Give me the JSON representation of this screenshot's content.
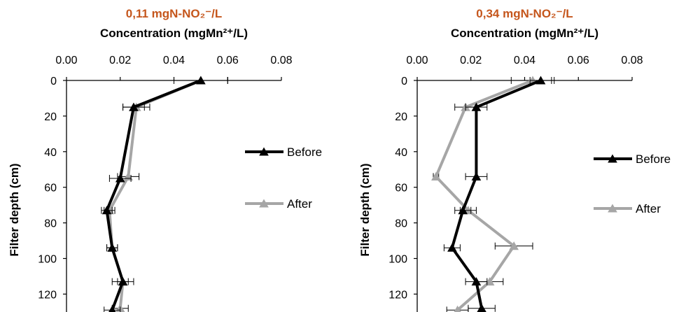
{
  "chart_data": [
    {
      "type": "line",
      "title": "0,11 mgN-NO₂⁻/L",
      "xlabel": "Concentration (mgMn²⁺/L)",
      "ylabel": "Filter depth (cm)",
      "xlim": [
        0,
        0.08
      ],
      "ylim": [
        0,
        130
      ],
      "y_inverted": true,
      "x_axis_position": "top",
      "x_ticks": [
        "0.00",
        "0.02",
        "0.04",
        "0.06",
        "0.08"
      ],
      "y_ticks": [
        "0",
        "20",
        "40",
        "60",
        "80",
        "100",
        "120"
      ],
      "grid": false,
      "legend": "right",
      "series": [
        {
          "name": "Before",
          "color": "#000000",
          "marker": "triangle",
          "points": [
            {
              "x": 0.05,
              "y": 0,
              "err": 0.01
            },
            {
              "x": 0.025,
              "y": 15,
              "err": 0.004
            },
            {
              "x": 0.02,
              "y": 55,
              "err": 0.004
            },
            {
              "x": 0.015,
              "y": 73,
              "err": 0.002
            },
            {
              "x": 0.017,
              "y": 94,
              "err": 0.002
            },
            {
              "x": 0.021,
              "y": 113,
              "err": 0.002
            },
            {
              "x": 0.017,
              "y": 129,
              "err": 0.003
            }
          ]
        },
        {
          "name": "After",
          "color": "#a6a6a6",
          "marker": "triangle",
          "points": [
            {
              "x": 0.05,
              "y": 0,
              "err": 0.01
            },
            {
              "x": 0.026,
              "y": 15,
              "err": 0.005
            },
            {
              "x": 0.023,
              "y": 54,
              "err": 0.004
            },
            {
              "x": 0.016,
              "y": 73,
              "err": 0.002
            },
            {
              "x": 0.017,
              "y": 94,
              "err": 0.002
            },
            {
              "x": 0.021,
              "y": 113,
              "err": 0.004
            },
            {
              "x": 0.02,
              "y": 128,
              "err": 0.003
            }
          ]
        }
      ]
    },
    {
      "type": "line",
      "title": "0,34 mgN-NO₂⁻/L",
      "xlabel": "Concentration (mgMn²⁺/L)",
      "ylabel": "Filter depth (cm)",
      "xlim": [
        0,
        0.08
      ],
      "ylim": [
        0,
        130
      ],
      "y_inverted": true,
      "x_axis_position": "top",
      "x_ticks": [
        "0.00",
        "0.02",
        "0.04",
        "0.06",
        "0.08"
      ],
      "y_ticks": [
        "0",
        "20",
        "40",
        "60",
        "80",
        "100",
        "120"
      ],
      "grid": false,
      "legend": "right",
      "series": [
        {
          "name": "Before",
          "color": "#000000",
          "marker": "triangle",
          "points": [
            {
              "x": 0.046,
              "y": 0,
              "err": 0.004
            },
            {
              "x": 0.022,
              "y": 15,
              "err": 0.004
            },
            {
              "x": 0.022,
              "y": 54,
              "err": 0.004
            },
            {
              "x": 0.017,
              "y": 73,
              "err": 0.003
            },
            {
              "x": 0.013,
              "y": 94,
              "err": 0.003
            },
            {
              "x": 0.022,
              "y": 113,
              "err": 0.004
            },
            {
              "x": 0.024,
              "y": 128,
              "err": 0.005
            }
          ]
        },
        {
          "name": "After",
          "color": "#a6a6a6",
          "marker": "triangle",
          "points": [
            {
              "x": 0.043,
              "y": 0,
              "err": 0.008
            },
            {
              "x": 0.018,
              "y": 15,
              "err": 0.004
            },
            {
              "x": 0.007,
              "y": 54,
              "err": 0.001
            },
            {
              "x": 0.019,
              "y": 73,
              "err": 0.003
            },
            {
              "x": 0.036,
              "y": 93,
              "err": 0.007
            },
            {
              "x": 0.027,
              "y": 113,
              "err": 0.005
            },
            {
              "x": 0.015,
              "y": 129,
              "err": 0.004
            }
          ]
        }
      ]
    }
  ]
}
